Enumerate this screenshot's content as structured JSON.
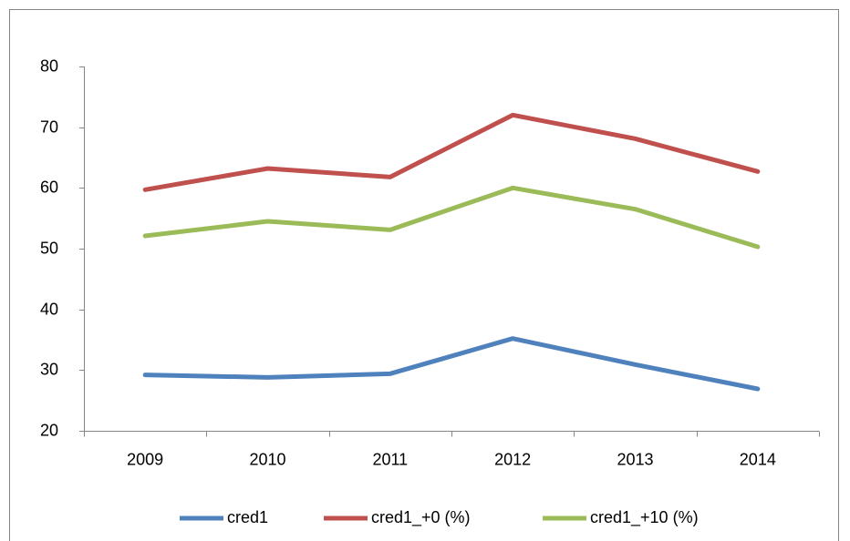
{
  "chart_data": {
    "type": "line",
    "categories": [
      "2009",
      "2010",
      "2011",
      "2012",
      "2013",
      "2014"
    ],
    "series": [
      {
        "name": "cred1",
        "color": "#4f81bd",
        "values": [
          29.2,
          28.8,
          29.4,
          35.2,
          30.9,
          26.9
        ]
      },
      {
        "name": "cred1_+0 (%)",
        "color": "#c0504d",
        "values": [
          59.7,
          63.2,
          61.8,
          72.0,
          68.1,
          62.7
        ]
      },
      {
        "name": "cred1_+10 (%)",
        "color": "#9bbb59",
        "values": [
          52.1,
          54.5,
          53.1,
          60.0,
          56.5,
          50.3
        ]
      }
    ],
    "ylim": [
      20,
      80
    ],
    "yticks": [
      20,
      30,
      40,
      50,
      60,
      70,
      80
    ],
    "grid": false,
    "legend": "bottom"
  }
}
